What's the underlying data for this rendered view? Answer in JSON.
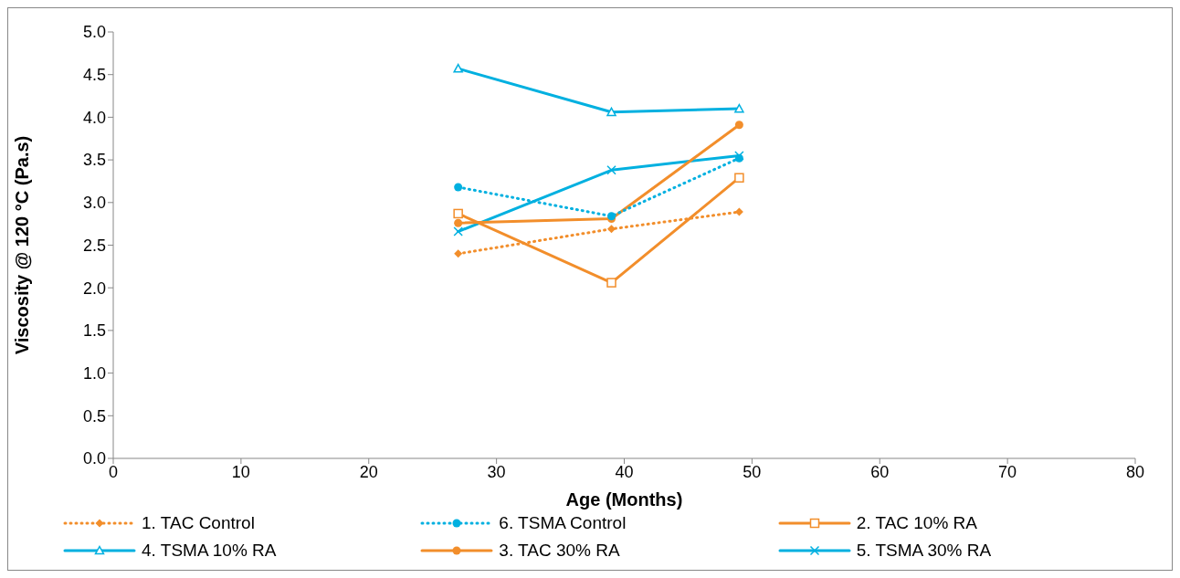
{
  "chart_data": {
    "type": "line",
    "xlabel": "Age (Months)",
    "ylabel": "Viscosity @ 120 °C (Pa.s)",
    "x": [
      27,
      39,
      49
    ],
    "xlim": [
      0,
      80
    ],
    "xticks": [
      0,
      10,
      20,
      30,
      40,
      50,
      60,
      70,
      80
    ],
    "ylim": [
      0,
      5
    ],
    "yticks": [
      {
        "value": 0,
        "label": "0.0"
      },
      {
        "value": 0.5,
        "label": "0.5"
      },
      {
        "value": 1,
        "label": "1.0"
      },
      {
        "value": 1.5,
        "label": "1.5"
      },
      {
        "value": 2,
        "label": "2.0"
      },
      {
        "value": 2.5,
        "label": "2.5"
      },
      {
        "value": 3,
        "label": "3.0"
      },
      {
        "value": 3.5,
        "label": "3.5"
      },
      {
        "value": 4,
        "label": "4.0"
      },
      {
        "value": 4.5,
        "label": "4.5"
      },
      {
        "value": 5,
        "label": "5.0"
      }
    ],
    "grid": false,
    "legend": "bottom",
    "series": [
      {
        "name": "1. TAC Control",
        "color": "#f28e2b",
        "values": [
          2.4,
          2.69,
          2.89
        ],
        "marker": "diamond",
        "line_style": "dotted"
      },
      {
        "name": "6. TSMA Control",
        "color": "#00b0e0",
        "values": [
          3.18,
          2.84,
          3.52
        ],
        "marker": "circle",
        "line_style": "dotted"
      },
      {
        "name": "2. TAC 10% RA",
        "color": "#f28e2b",
        "values": [
          2.87,
          2.06,
          3.29
        ],
        "marker": "square",
        "line_style": "solid"
      },
      {
        "name": "4. TSMA 10% RA",
        "color": "#00b0e0",
        "values": [
          4.57,
          4.06,
          4.1
        ],
        "marker": "triangle",
        "line_style": "solid"
      },
      {
        "name": "3. TAC 30% RA",
        "color": "#f28e2b",
        "values": [
          2.76,
          2.81,
          3.91
        ],
        "marker": "circle",
        "line_style": "solid"
      },
      {
        "name": "5. TSMA 30% RA",
        "color": "#00b0e0",
        "values": [
          2.66,
          3.38,
          3.55
        ],
        "marker": "cross",
        "line_style": "solid"
      }
    ]
  }
}
